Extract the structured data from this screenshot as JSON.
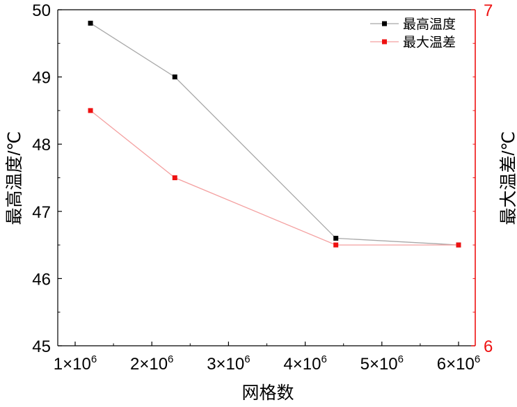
{
  "chart_data": {
    "type": "line",
    "xlabel": "网格数",
    "ylabel": "最高温度/℃",
    "y2label": "最大温差/℃",
    "xlim": [
      1000000,
      6000000
    ],
    "ylim": [
      45,
      50
    ],
    "y2lim": [
      6,
      7
    ],
    "x_ticks": [
      {
        "value": 1000000,
        "base": "1×10",
        "exp": "6"
      },
      {
        "value": 2000000,
        "base": "2×10",
        "exp": "6"
      },
      {
        "value": 3000000,
        "base": "3×10",
        "exp": "6"
      },
      {
        "value": 4000000,
        "base": "4×10",
        "exp": "6"
      },
      {
        "value": 5000000,
        "base": "5×10",
        "exp": "6"
      },
      {
        "value": 6000000,
        "base": "6×10",
        "exp": "6"
      }
    ],
    "y_ticks": [
      "45",
      "46",
      "47",
      "48",
      "49",
      "50"
    ],
    "y2_ticks": [
      "6",
      "7"
    ],
    "series": [
      {
        "name": "最高温度",
        "axis": "left",
        "color": "#000000",
        "line_color": "#a8a8a8",
        "x": [
          1200000,
          2300000,
          4400000,
          6000000
        ],
        "y": [
          49.8,
          49.0,
          46.6,
          46.5
        ]
      },
      {
        "name": "最大温差",
        "axis": "right",
        "color": "#ee1111",
        "line_color": "#f4a0a0",
        "x": [
          1200000,
          2300000,
          4400000,
          6000000
        ],
        "y": [
          6.7,
          6.5,
          6.3,
          6.3
        ]
      }
    ],
    "legend_position": "top-right",
    "grid": false,
    "colors": {
      "axis": "#000000",
      "right_axis": "#ee1111"
    }
  }
}
